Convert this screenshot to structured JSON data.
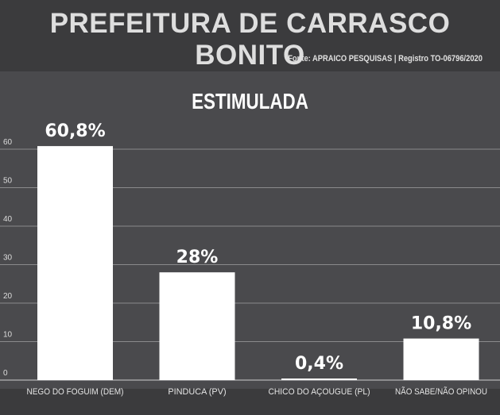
{
  "header": {
    "title": "PREFEITURA DE CARRASCO BONITO",
    "source": "Fonte: APRAICO PESQUISAS | Registro TO-06796/2020"
  },
  "chart_data": {
    "type": "bar",
    "title": "ESTIMULADA",
    "categories": [
      "NEGO DO FOGUIM (DEM)",
      "PINDUCA (PV)",
      "CHICO DO AÇOUGUE (PL)",
      "NÃO SABE/NÃO OPINOU"
    ],
    "values": [
      60.8,
      28,
      0.4,
      10.8
    ],
    "data_labels": [
      "60,8%",
      "28%",
      "0,4%",
      "10,8%"
    ],
    "yticks": [
      0,
      10,
      20,
      30,
      40,
      50,
      60
    ],
    "ylim": [
      0,
      60
    ],
    "grid": true,
    "colors": {
      "bar": "#ffffff",
      "background": "#4a4a4d",
      "grid": "#8a8a8c"
    }
  }
}
